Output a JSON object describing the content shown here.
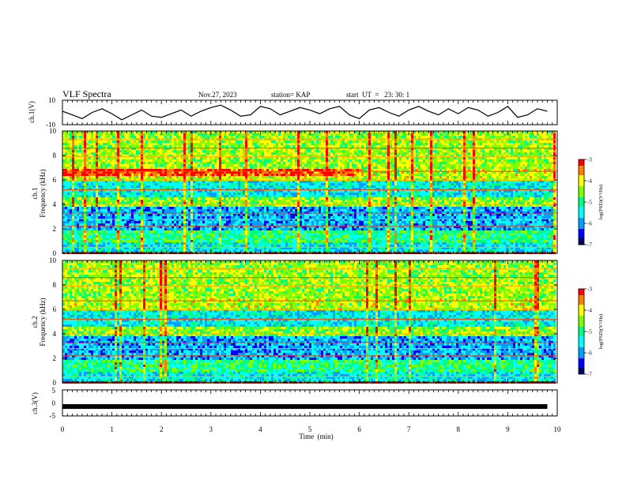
{
  "header": {
    "title": "VLF Spectra",
    "date": "Nov.27, 2023",
    "station": "station= KAP",
    "start": "start  UT  =   23: 30: 1"
  },
  "chart_data": [
    {
      "type": "line",
      "name": "ch1-waveform",
      "ylabel": "ch.1(V)",
      "ylim": [
        -10,
        10
      ],
      "yticks": [
        "10",
        "-10"
      ],
      "x": [
        0.0,
        0.2,
        0.4,
        0.6,
        0.8,
        1.0,
        1.2,
        1.4,
        1.6,
        1.8,
        2.0,
        2.2,
        2.4,
        2.6,
        2.8,
        3.0,
        3.2,
        3.4,
        3.6,
        3.8,
        4.0,
        4.2,
        4.4,
        4.6,
        4.8,
        5.0,
        5.2,
        5.4,
        5.6,
        5.8,
        6.0,
        6.2,
        6.4,
        6.6,
        6.8,
        7.0,
        7.2,
        7.4,
        7.6,
        7.8,
        8.0,
        8.2,
        8.4,
        8.6,
        8.8,
        9.0,
        9.2,
        9.4,
        9.6,
        9.8
      ],
      "y": [
        1,
        -2,
        -5,
        0,
        3,
        -1,
        -6,
        -2,
        2,
        -3,
        -4,
        -1,
        2,
        -3,
        1,
        4,
        6,
        2,
        -3,
        -2,
        5,
        3,
        -2,
        1,
        4,
        2,
        -1,
        3,
        5,
        -2,
        -5,
        2,
        4,
        0,
        -3,
        2,
        5,
        1,
        -2,
        3,
        -1,
        4,
        2,
        -3,
        0,
        5,
        -4,
        -2,
        3,
        1
      ]
    },
    {
      "type": "heatmap",
      "name": "ch1-spectrogram",
      "ylabel": "ch.1\nFrequency (kHz)",
      "ylim": [
        0,
        10
      ],
      "yticks": [
        "0",
        "2",
        "4",
        "6",
        "8",
        "10"
      ],
      "colorbar": {
        "label": "log(PSD)(V²/Hz)",
        "range": [
          -7,
          -3
        ],
        "ticks": [
          "-3",
          "-4",
          "-5",
          "-6",
          "-7"
        ]
      }
    },
    {
      "type": "heatmap",
      "name": "ch2-spectrogram",
      "ylabel": "ch.2\nFrequency (kHz)",
      "ylim": [
        0,
        10
      ],
      "yticks": [
        "0",
        "2",
        "4",
        "6",
        "8",
        "10"
      ],
      "colorbar": {
        "label": "log(PSD)(V²/Hz)",
        "range": [
          -7,
          -3
        ],
        "ticks": [
          "-3",
          "-4",
          "-5",
          "-6",
          "-7"
        ]
      }
    },
    {
      "type": "line",
      "name": "ch3-waveform",
      "ylabel": "ch.3(V)",
      "ylim": [
        -5,
        5
      ],
      "yticks": [
        "5",
        "0",
        "-5"
      ],
      "x": [
        0,
        9.8
      ],
      "y": [
        -1.4,
        -1.4
      ]
    }
  ],
  "xaxis": {
    "label": "Time  (min)",
    "range": [
      0,
      10
    ],
    "ticks": [
      "0",
      "1",
      "2",
      "3",
      "4",
      "5",
      "6",
      "7",
      "8",
      "9",
      "10"
    ]
  },
  "colors": {
    "colormap": [
      "#000066",
      "#0000ff",
      "#00a0ff",
      "#00ffff",
      "#00ff80",
      "#80ff00",
      "#ffff00",
      "#ff8000",
      "#ff0000",
      "#ffffff"
    ]
  }
}
